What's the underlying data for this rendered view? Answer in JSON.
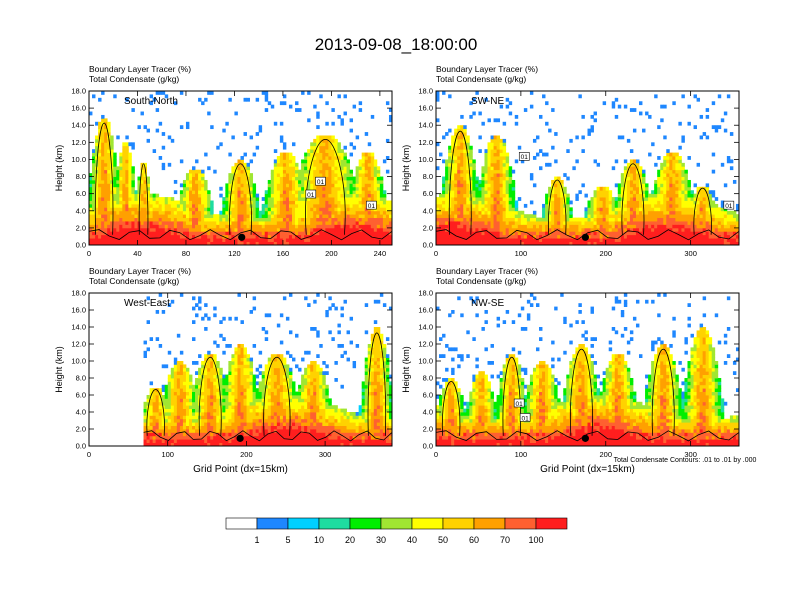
{
  "title": "2013-09-08_18:00:00",
  "panel_header_line1": "Boundary Layer Tracer   (%)",
  "panel_header_line2": "Total Condensate   (g/kg)",
  "contour_note": "Total Condensate Contours: .01 to .01 by .000",
  "colors": {
    "bins": [
      "#ffffff",
      "#1e87ff",
      "#00d0ff",
      "#1edca0",
      "#00ee00",
      "#a0e632",
      "#ffff00",
      "#ffd200",
      "#ffa000",
      "#ff6030",
      "#ff1e1e"
    ],
    "contour": "#000000"
  },
  "chart_data": [
    {
      "type": "contour",
      "label": "South-North",
      "ylabel": "Height (km)",
      "xlabel": "",
      "xlim": [
        0,
        250
      ],
      "ylim": [
        0,
        18
      ],
      "xticks": [
        "0",
        "40",
        "80",
        "120",
        "160",
        "200",
        "240"
      ],
      "yticks": [
        "0.0",
        "2.0",
        "4.0",
        "6.0",
        "8.0",
        "10.0",
        "12.0",
        "14.0",
        "16.0",
        "18.0"
      ],
      "marker_x": 126,
      "contour_labels": [
        {
          "text": "01",
          "x": 191,
          "y": 7.4
        },
        {
          "text": "01",
          "x": 183,
          "y": 5.9
        },
        {
          "text": "01",
          "x": 233,
          "y": 4.6
        }
      ]
    },
    {
      "type": "contour",
      "label": "SW-NE",
      "ylabel": "Height (km)",
      "xlabel": "",
      "xlim": [
        0,
        357
      ],
      "ylim": [
        0,
        18
      ],
      "xticks": [
        "0",
        "100",
        "200",
        "300"
      ],
      "yticks": [
        "0.0",
        "2.0",
        "4.0",
        "6.0",
        "8.0",
        "10.0",
        "12.0",
        "14.0",
        "16.0",
        "18.0"
      ],
      "marker_x": 176,
      "contour_labels": [
        {
          "text": "01",
          "x": 104,
          "y": 10.3
        },
        {
          "text": "01",
          "x": 345,
          "y": 4.6
        }
      ]
    },
    {
      "type": "contour",
      "label": "West-East",
      "ylabel": "Height (km)",
      "xlabel": "Grid Point (dx=15km)",
      "xlim": [
        0,
        385
      ],
      "ylim": [
        0,
        18
      ],
      "xticks": [
        "0",
        "100",
        "200",
        "300"
      ],
      "yticks": [
        "0.0",
        "2.0",
        "4.0",
        "6.0",
        "8.0",
        "10.0",
        "12.0",
        "14.0",
        "16.0",
        "18.0"
      ],
      "marker_x": 192,
      "contour_labels": []
    },
    {
      "type": "contour",
      "label": "NW-SE",
      "ylabel": "Height (km)",
      "xlabel": "Grid Point (dx=15km)",
      "xlim": [
        0,
        357
      ],
      "ylim": [
        0,
        18
      ],
      "xticks": [
        "0",
        "100",
        "200",
        "300"
      ],
      "yticks": [
        "0.0",
        "2.0",
        "4.0",
        "6.0",
        "8.0",
        "10.0",
        "12.0",
        "14.0",
        "16.0",
        "18.0"
      ],
      "marker_x": 176,
      "contour_labels": [
        {
          "text": "01",
          "x": 98,
          "y": 5.0
        },
        {
          "text": "01",
          "x": 105,
          "y": 3.3
        }
      ]
    }
  ],
  "colorbar": {
    "labels": [
      "1",
      "5",
      "10",
      "20",
      "30",
      "40",
      "50",
      "60",
      "70",
      "100"
    ]
  }
}
